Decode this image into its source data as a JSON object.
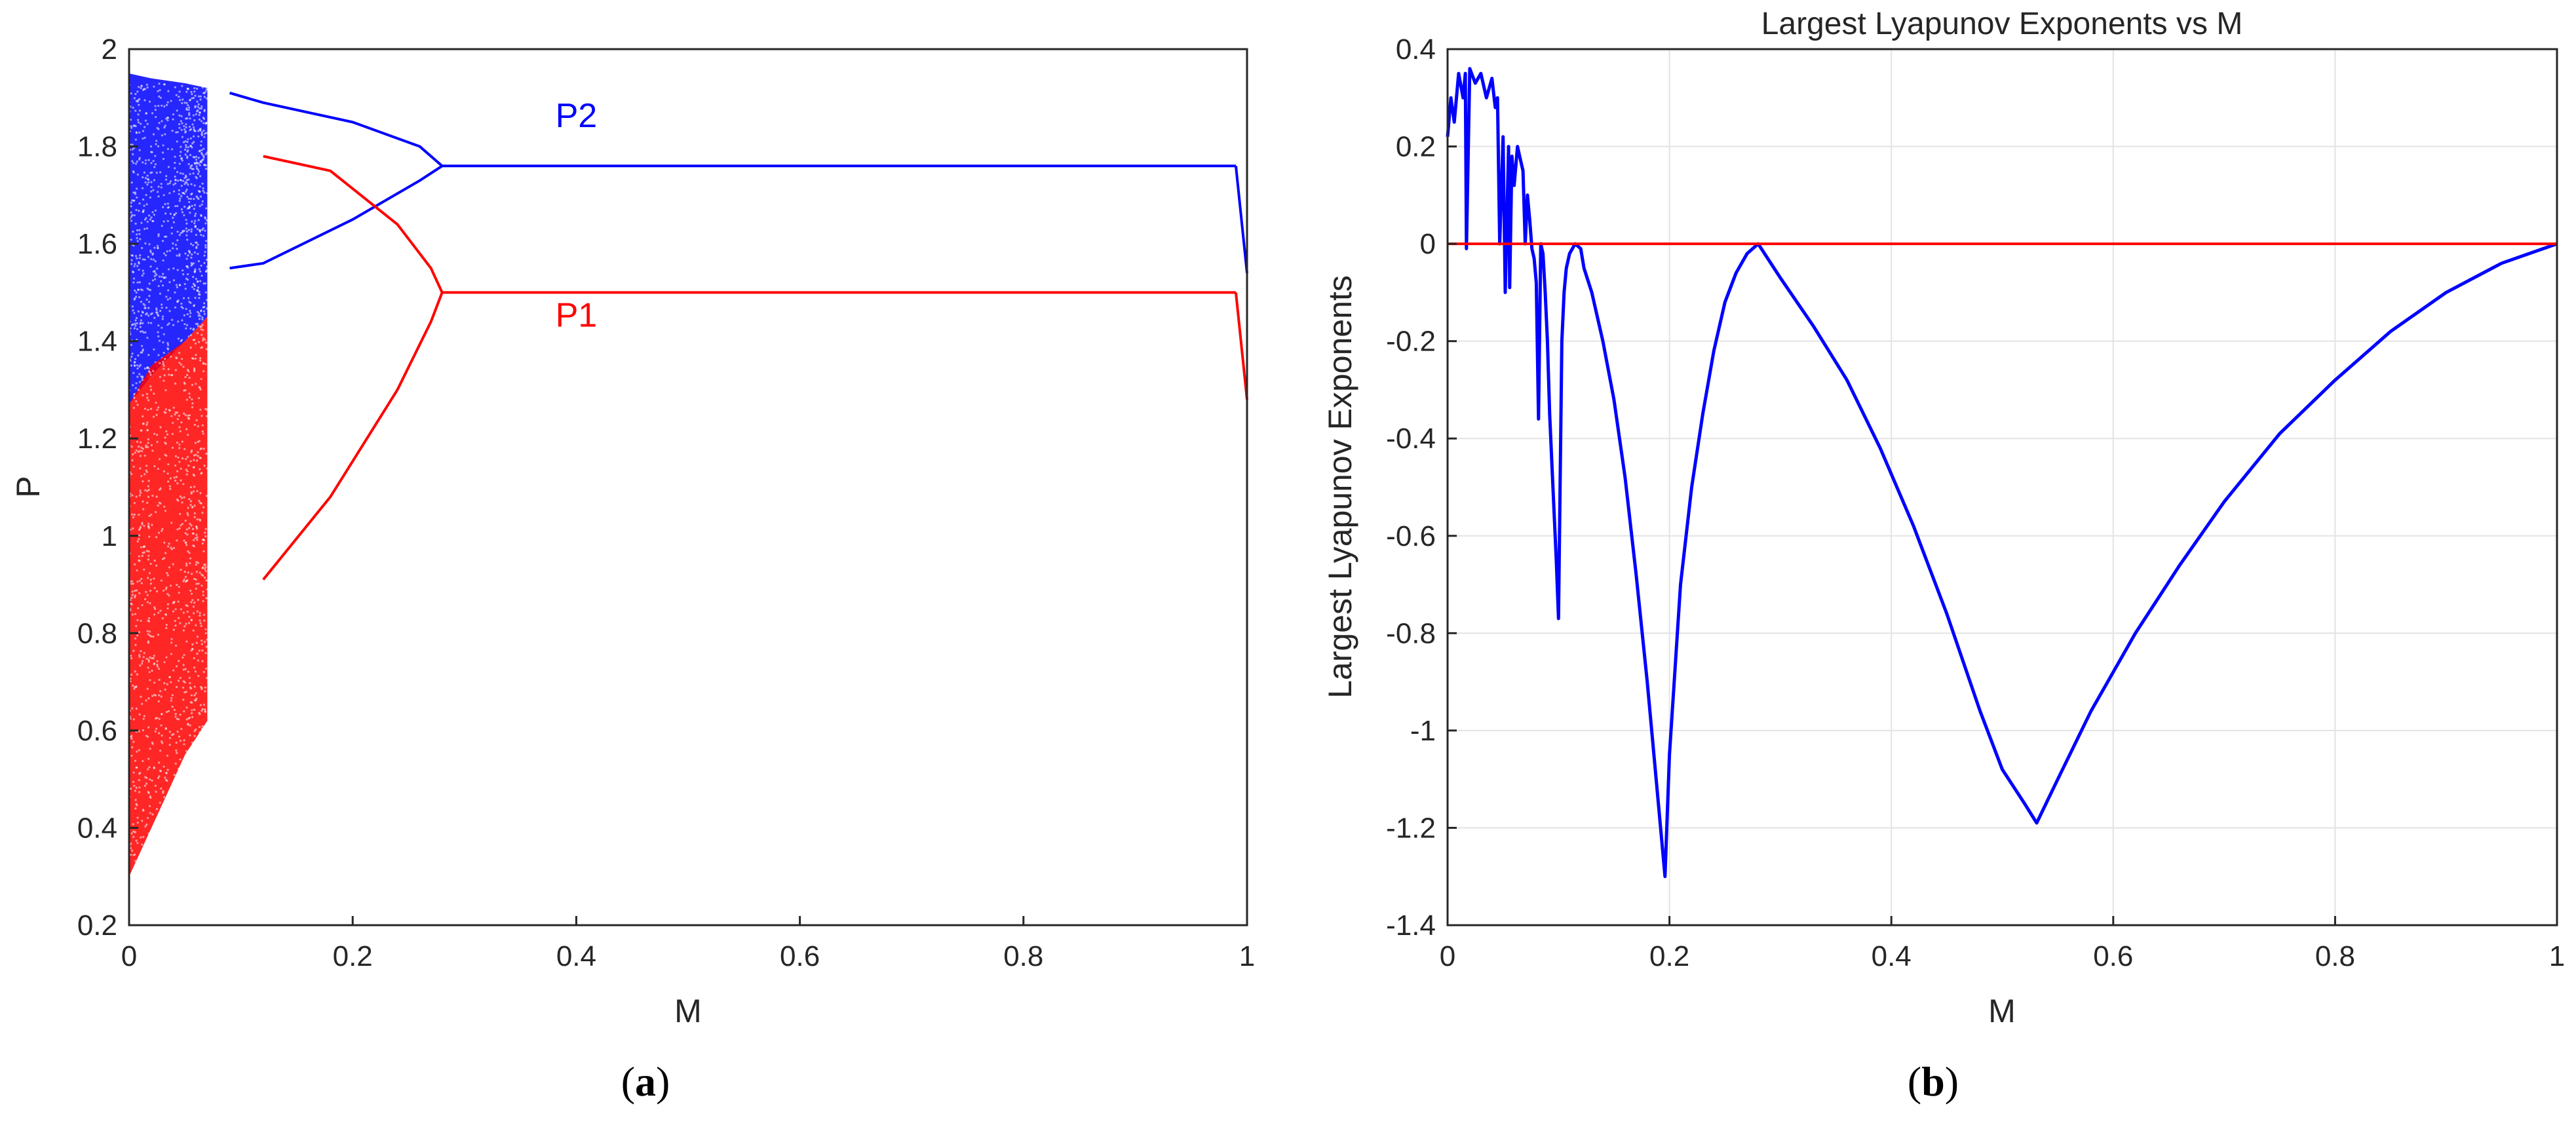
{
  "chart_data": [
    {
      "type": "scatter",
      "panel_label": "(a)",
      "title": "",
      "xlabel": "M",
      "ylabel": "P",
      "xlim": [
        0,
        1
      ],
      "ylim": [
        0.2,
        2
      ],
      "xticks": [
        "0",
        "0.2",
        "0.4",
        "0.6",
        "0.8",
        "1"
      ],
      "yticks": [
        "0.2",
        "0.4",
        "0.6",
        "0.8",
        "1",
        "1.2",
        "1.4",
        "1.6",
        "1.8",
        "2"
      ],
      "grid": false,
      "series": [
        {
          "name": "P2",
          "color": "#0000ff",
          "chaotic_band_approx": [
            [
              0.0,
              1.27,
              1.95
            ],
            [
              0.02,
              1.33,
              1.94
            ],
            [
              0.05,
              1.4,
              1.93
            ],
            [
              0.07,
              1.45,
              1.92
            ]
          ],
          "branches_approx": [
            [
              [
                0.09,
                1.91
              ],
              [
                0.12,
                1.89
              ],
              [
                0.2,
                1.85
              ],
              [
                0.26,
                1.8
              ],
              [
                0.28,
                1.76
              ]
            ],
            [
              [
                0.09,
                1.55
              ],
              [
                0.12,
                1.56
              ],
              [
                0.2,
                1.65
              ],
              [
                0.26,
                1.73
              ],
              [
                0.28,
                1.76
              ]
            ],
            [
              [
                0.28,
                1.76
              ],
              [
                0.4,
                1.76
              ],
              [
                0.6,
                1.76
              ],
              [
                0.8,
                1.76
              ],
              [
                0.99,
                1.76
              ]
            ]
          ]
        },
        {
          "name": "P1",
          "color": "#ff0000",
          "chaotic_band_approx": [
            [
              0.0,
              0.3,
              1.27
            ],
            [
              0.02,
              0.4,
              1.35
            ],
            [
              0.05,
              0.55,
              1.4
            ],
            [
              0.07,
              0.62,
              1.45
            ]
          ],
          "branches_approx": [
            [
              [
                0.12,
                1.78
              ],
              [
                0.18,
                1.75
              ],
              [
                0.24,
                1.64
              ],
              [
                0.27,
                1.55
              ],
              [
                0.28,
                1.5
              ]
            ],
            [
              [
                0.12,
                0.91
              ],
              [
                0.18,
                1.08
              ],
              [
                0.24,
                1.3
              ],
              [
                0.27,
                1.44
              ],
              [
                0.28,
                1.5
              ]
            ],
            [
              [
                0.28,
                1.5
              ],
              [
                0.4,
                1.5
              ],
              [
                0.6,
                1.5
              ],
              [
                0.8,
                1.5
              ],
              [
                0.99,
                1.5
              ]
            ]
          ]
        }
      ],
      "annotations": [
        {
          "text": "P2",
          "x": 0.4,
          "y": 1.84,
          "color": "#0000ff"
        },
        {
          "text": "P1",
          "x": 0.4,
          "y": 1.43,
          "color": "#ff0000"
        }
      ]
    },
    {
      "type": "line",
      "panel_label": "(b)",
      "title": "Largest Lyapunov Exponents vs M",
      "xlabel": "M",
      "ylabel": "Largest Lyapunov Exponents",
      "xlim": [
        0,
        1
      ],
      "ylim": [
        -1.4,
        0.4
      ],
      "xticks": [
        "0",
        "0.2",
        "0.4",
        "0.6",
        "0.8",
        "1"
      ],
      "yticks": [
        "-1.4",
        "-1.2",
        "-1",
        "-0.8",
        "-0.6",
        "-0.4",
        "-0.2",
        "0",
        "0.2",
        "0.4"
      ],
      "grid": true,
      "series": [
        {
          "name": "",
          "color": "#0000ff",
          "x": [
            0.0,
            0.003,
            0.006,
            0.01,
            0.014,
            0.016,
            0.017,
            0.02,
            0.025,
            0.03,
            0.035,
            0.04,
            0.043,
            0.045,
            0.047,
            0.05,
            0.052,
            0.055,
            0.056,
            0.058,
            0.06,
            0.063,
            0.065,
            0.068,
            0.07,
            0.072,
            0.074,
            0.076,
            0.078,
            0.08,
            0.082,
            0.084,
            0.086,
            0.088,
            0.09,
            0.092,
            0.095,
            0.098,
            0.1,
            0.103,
            0.105,
            0.107,
            0.11,
            0.115,
            0.12,
            0.123,
            0.13,
            0.14,
            0.15,
            0.16,
            0.17,
            0.18,
            0.19,
            0.196,
            0.2,
            0.21,
            0.22,
            0.23,
            0.24,
            0.25,
            0.26,
            0.27,
            0.28,
            0.3,
            0.33,
            0.36,
            0.39,
            0.42,
            0.45,
            0.48,
            0.5,
            0.52,
            0.531,
            0.55,
            0.58,
            0.62,
            0.66,
            0.7,
            0.75,
            0.8,
            0.85,
            0.9,
            0.95,
            1.0
          ],
          "y": [
            0.22,
            0.3,
            0.25,
            0.35,
            0.3,
            0.35,
            -0.01,
            0.36,
            0.33,
            0.35,
            0.3,
            0.34,
            0.28,
            0.3,
            0.0,
            0.22,
            -0.1,
            0.2,
            -0.09,
            0.18,
            0.12,
            0.2,
            0.18,
            0.15,
            0.0,
            0.1,
            0.05,
            -0.01,
            -0.03,
            -0.08,
            -0.36,
            0.0,
            -0.02,
            -0.1,
            -0.2,
            -0.35,
            -0.5,
            -0.65,
            -0.77,
            -0.2,
            -0.1,
            -0.05,
            -0.02,
            0.0,
            -0.01,
            -0.05,
            -0.1,
            -0.2,
            -0.32,
            -0.48,
            -0.68,
            -0.9,
            -1.15,
            -1.3,
            -1.05,
            -0.7,
            -0.5,
            -0.35,
            -0.22,
            -0.12,
            -0.06,
            -0.02,
            0.0,
            -0.07,
            -0.17,
            -0.28,
            -0.42,
            -0.58,
            -0.76,
            -0.96,
            -1.08,
            -1.15,
            -1.19,
            -1.1,
            -0.96,
            -0.8,
            -0.66,
            -0.53,
            -0.39,
            -0.28,
            -0.18,
            -0.1,
            -0.04,
            0.0
          ]
        },
        {
          "name": "",
          "color": "#ff0000",
          "x": [
            0.0,
            1.0
          ],
          "y": [
            0.0,
            0.0
          ]
        }
      ]
    }
  ],
  "captions": {
    "a": "(a)",
    "b": "(b)"
  }
}
